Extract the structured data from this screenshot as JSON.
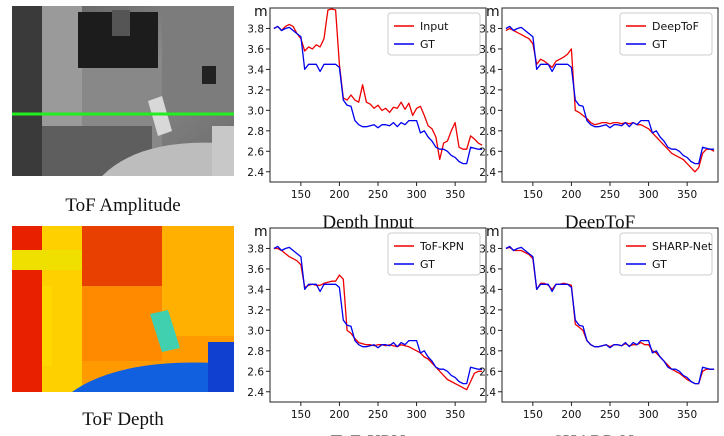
{
  "captions": {
    "amplitude": "ToF Amplitude",
    "depth_image": "ToF Depth"
  },
  "chart_data": [
    {
      "id": "depth-input",
      "type": "line",
      "title": "Depth Input",
      "ylabel": "m",
      "xlim": [
        110,
        390
      ],
      "ylim": [
        2.3,
        4.0
      ],
      "xticks": [
        150,
        200,
        250,
        300,
        350
      ],
      "yticks": [
        2.4,
        2.6,
        2.8,
        3.0,
        3.2,
        3.4,
        3.6,
        3.8
      ],
      "x": [
        115,
        120,
        125,
        130,
        135,
        140,
        145,
        150,
        155,
        160,
        165,
        170,
        175,
        180,
        185,
        190,
        195,
        200,
        205,
        210,
        215,
        220,
        225,
        230,
        235,
        240,
        245,
        250,
        255,
        260,
        265,
        270,
        275,
        280,
        285,
        290,
        295,
        300,
        305,
        310,
        315,
        320,
        325,
        330,
        335,
        340,
        345,
        350,
        355,
        360,
        365,
        370,
        375,
        380,
        385
      ],
      "series": [
        {
          "name": "Input",
          "color": "#ee0000",
          "values": [
            3.8,
            3.82,
            3.78,
            3.82,
            3.84,
            3.82,
            3.75,
            3.7,
            3.58,
            3.62,
            3.6,
            3.64,
            3.62,
            3.7,
            3.98,
            3.99,
            3.98,
            3.45,
            3.12,
            3.1,
            3.15,
            3.1,
            3.08,
            3.25,
            3.08,
            3.06,
            3.02,
            3.05,
            3.0,
            3.02,
            2.98,
            3.03,
            3.02,
            3.08,
            3.01,
            3.07,
            2.95,
            3.02,
            3.04,
            2.95,
            2.85,
            2.82,
            2.74,
            2.52,
            2.68,
            2.7,
            2.8,
            2.88,
            2.64,
            2.62,
            2.62,
            2.75,
            2.72,
            2.68,
            2.66
          ]
        },
        {
          "name": "GT",
          "color": "#0000ee",
          "values": [
            3.8,
            3.82,
            3.78,
            3.8,
            3.81,
            3.78,
            3.75,
            3.72,
            3.4,
            3.45,
            3.45,
            3.45,
            3.38,
            3.45,
            3.45,
            3.45,
            3.45,
            3.42,
            3.1,
            3.05,
            3.04,
            2.9,
            2.86,
            2.84,
            2.84,
            2.85,
            2.86,
            2.83,
            2.86,
            2.86,
            2.85,
            2.88,
            2.84,
            2.88,
            2.86,
            2.9,
            2.9,
            2.9,
            2.78,
            2.8,
            2.74,
            2.7,
            2.64,
            2.62,
            2.62,
            2.6,
            2.56,
            2.54,
            2.5,
            2.48,
            2.48,
            2.64,
            2.63,
            2.62,
            2.62
          ]
        }
      ],
      "legend": "top-right"
    },
    {
      "id": "deeptof",
      "type": "line",
      "title": "DeepToF",
      "ylabel": "m",
      "xlim": [
        110,
        390
      ],
      "ylim": [
        2.3,
        4.0
      ],
      "xticks": [
        150,
        200,
        250,
        300,
        350
      ],
      "yticks": [
        2.4,
        2.6,
        2.8,
        3.0,
        3.2,
        3.4,
        3.6,
        3.8
      ],
      "x": [
        115,
        120,
        125,
        130,
        135,
        140,
        145,
        150,
        155,
        160,
        165,
        170,
        175,
        180,
        185,
        190,
        195,
        200,
        205,
        210,
        215,
        220,
        225,
        230,
        235,
        240,
        245,
        250,
        255,
        260,
        265,
        270,
        275,
        280,
        285,
        290,
        295,
        300,
        305,
        310,
        315,
        320,
        325,
        330,
        335,
        340,
        345,
        350,
        355,
        360,
        365,
        370,
        375,
        380,
        385
      ],
      "series": [
        {
          "name": "DeepToF",
          "color": "#ee0000",
          "values": [
            3.78,
            3.8,
            3.78,
            3.76,
            3.74,
            3.72,
            3.7,
            3.65,
            3.45,
            3.5,
            3.48,
            3.45,
            3.42,
            3.48,
            3.5,
            3.52,
            3.55,
            3.6,
            3.0,
            2.98,
            2.95,
            2.92,
            2.88,
            2.86,
            2.87,
            2.88,
            2.88,
            2.87,
            2.88,
            2.88,
            2.87,
            2.88,
            2.87,
            2.88,
            2.86,
            2.86,
            2.84,
            2.82,
            2.78,
            2.74,
            2.7,
            2.66,
            2.62,
            2.58,
            2.56,
            2.54,
            2.52,
            2.48,
            2.44,
            2.4,
            2.44,
            2.58,
            2.62,
            2.62,
            2.6
          ]
        },
        {
          "name": "GT",
          "color": "#0000ee",
          "values": [
            3.8,
            3.82,
            3.78,
            3.8,
            3.81,
            3.78,
            3.75,
            3.72,
            3.4,
            3.45,
            3.45,
            3.45,
            3.38,
            3.45,
            3.45,
            3.45,
            3.45,
            3.42,
            3.1,
            3.05,
            3.04,
            2.9,
            2.86,
            2.84,
            2.84,
            2.85,
            2.86,
            2.83,
            2.86,
            2.86,
            2.85,
            2.88,
            2.84,
            2.88,
            2.86,
            2.9,
            2.9,
            2.9,
            2.78,
            2.8,
            2.74,
            2.7,
            2.64,
            2.62,
            2.62,
            2.6,
            2.56,
            2.54,
            2.5,
            2.48,
            2.48,
            2.64,
            2.63,
            2.62,
            2.62
          ]
        }
      ],
      "legend": "top-right"
    },
    {
      "id": "tof-kpn",
      "type": "line",
      "title": "ToF-KPN",
      "ylabel": "m",
      "xlim": [
        110,
        390
      ],
      "ylim": [
        2.3,
        4.0
      ],
      "xticks": [
        150,
        200,
        250,
        300,
        350
      ],
      "yticks": [
        2.4,
        2.6,
        2.8,
        3.0,
        3.2,
        3.4,
        3.6,
        3.8
      ],
      "x": [
        115,
        120,
        125,
        130,
        135,
        140,
        145,
        150,
        155,
        160,
        165,
        170,
        175,
        180,
        185,
        190,
        195,
        200,
        205,
        210,
        215,
        220,
        225,
        230,
        235,
        240,
        245,
        250,
        255,
        260,
        265,
        270,
        275,
        280,
        285,
        290,
        295,
        300,
        305,
        310,
        315,
        320,
        325,
        330,
        335,
        340,
        345,
        350,
        355,
        360,
        365,
        370,
        375,
        380,
        385
      ],
      "series": [
        {
          "name": "ToF-KPN",
          "color": "#ee0000",
          "values": [
            3.8,
            3.8,
            3.78,
            3.75,
            3.72,
            3.7,
            3.68,
            3.64,
            3.42,
            3.44,
            3.45,
            3.44,
            3.44,
            3.46,
            3.47,
            3.48,
            3.48,
            3.54,
            3.5,
            3.0,
            2.97,
            2.92,
            2.88,
            2.87,
            2.86,
            2.86,
            2.85,
            2.86,
            2.86,
            2.85,
            2.86,
            2.85,
            2.84,
            2.86,
            2.85,
            2.84,
            2.82,
            2.8,
            2.78,
            2.74,
            2.72,
            2.68,
            2.64,
            2.6,
            2.56,
            2.52,
            2.5,
            2.48,
            2.46,
            2.44,
            2.42,
            2.5,
            2.58,
            2.6,
            2.6
          ]
        },
        {
          "name": "GT",
          "color": "#0000ee",
          "values": [
            3.8,
            3.82,
            3.78,
            3.8,
            3.81,
            3.78,
            3.75,
            3.72,
            3.4,
            3.45,
            3.45,
            3.45,
            3.38,
            3.45,
            3.45,
            3.45,
            3.45,
            3.42,
            3.1,
            3.05,
            3.04,
            2.9,
            2.86,
            2.84,
            2.84,
            2.85,
            2.86,
            2.83,
            2.86,
            2.86,
            2.85,
            2.88,
            2.84,
            2.88,
            2.86,
            2.9,
            2.9,
            2.9,
            2.78,
            2.8,
            2.74,
            2.7,
            2.64,
            2.62,
            2.62,
            2.6,
            2.56,
            2.54,
            2.5,
            2.48,
            2.48,
            2.64,
            2.63,
            2.62,
            2.62
          ]
        }
      ],
      "legend": "top-right"
    },
    {
      "id": "sharp-net",
      "type": "line",
      "title": "SHARP-Net",
      "ylabel": "m",
      "xlim": [
        110,
        390
      ],
      "ylim": [
        2.3,
        4.0
      ],
      "xticks": [
        150,
        200,
        250,
        300,
        350
      ],
      "yticks": [
        2.4,
        2.6,
        2.8,
        3.0,
        3.2,
        3.4,
        3.6,
        3.8
      ],
      "x": [
        115,
        120,
        125,
        130,
        135,
        140,
        145,
        150,
        155,
        160,
        165,
        170,
        175,
        180,
        185,
        190,
        195,
        200,
        205,
        210,
        215,
        220,
        225,
        230,
        235,
        240,
        245,
        250,
        255,
        260,
        265,
        270,
        275,
        280,
        285,
        290,
        295,
        300,
        305,
        310,
        315,
        320,
        325,
        330,
        335,
        340,
        345,
        350,
        355,
        360,
        365,
        370,
        375,
        380,
        385
      ],
      "series": [
        {
          "name": "SHARP-Net",
          "color": "#ee0000",
          "values": [
            3.8,
            3.81,
            3.78,
            3.78,
            3.78,
            3.76,
            3.74,
            3.7,
            3.4,
            3.46,
            3.46,
            3.44,
            3.4,
            3.45,
            3.45,
            3.46,
            3.45,
            3.44,
            3.06,
            3.03,
            3.0,
            2.9,
            2.86,
            2.84,
            2.84,
            2.85,
            2.86,
            2.84,
            2.86,
            2.86,
            2.85,
            2.87,
            2.85,
            2.86,
            2.86,
            2.88,
            2.86,
            2.86,
            2.8,
            2.78,
            2.74,
            2.7,
            2.66,
            2.62,
            2.6,
            2.58,
            2.55,
            2.52,
            2.5,
            2.48,
            2.48,
            2.6,
            2.62,
            2.62,
            2.62
          ]
        },
        {
          "name": "GT",
          "color": "#0000ee",
          "values": [
            3.8,
            3.82,
            3.78,
            3.8,
            3.81,
            3.78,
            3.75,
            3.72,
            3.4,
            3.45,
            3.45,
            3.45,
            3.38,
            3.45,
            3.45,
            3.45,
            3.45,
            3.42,
            3.1,
            3.05,
            3.04,
            2.9,
            2.86,
            2.84,
            2.84,
            2.85,
            2.86,
            2.83,
            2.86,
            2.86,
            2.85,
            2.88,
            2.84,
            2.88,
            2.86,
            2.9,
            2.9,
            2.9,
            2.78,
            2.8,
            2.74,
            2.7,
            2.64,
            2.62,
            2.62,
            2.6,
            2.56,
            2.54,
            2.5,
            2.48,
            2.48,
            2.64,
            2.63,
            2.62,
            2.62
          ]
        }
      ],
      "legend": "top-right"
    }
  ]
}
